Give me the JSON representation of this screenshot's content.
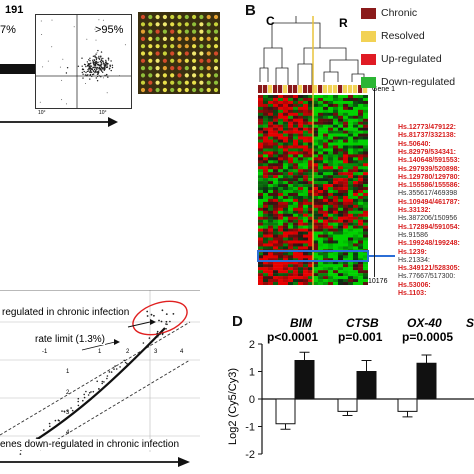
{
  "panel_a": {
    "count_text": "191",
    "percent_left": "7%",
    "percent_right": ">95%",
    "axis_tick": "10°"
  },
  "panel_b": {
    "letter": "B",
    "cluster_labels": [
      "C",
      "R"
    ],
    "legend": [
      {
        "label": "Chronic",
        "color": "#8b1a1a"
      },
      {
        "label": "Resolved",
        "color": "#f2d255"
      },
      {
        "label": "Up-regulated",
        "color": "#e01b24"
      },
      {
        "label": "Down-regulated",
        "color": "#2bb534"
      }
    ],
    "gene_top": "Gene 1",
    "gene_bottom": "10176",
    "gene_labels": [
      {
        "text": "Hs.12773/479122:",
        "red": true
      },
      {
        "text": "Hs.81737/332138:",
        "red": true
      },
      {
        "text": "Hs.50640:",
        "red": true
      },
      {
        "text": "Hs.82979/534341:",
        "red": true
      },
      {
        "text": "Hs.140648/591553:",
        "red": true
      },
      {
        "text": "Hs.297939/520898:",
        "red": true
      },
      {
        "text": "Hs.129780/129780:",
        "red": true
      },
      {
        "text": "Hs.155586/155586:",
        "red": true
      },
      {
        "text": "Hs.355617/469398",
        "red": false
      },
      {
        "text": "Hs.109494/461787:",
        "red": true
      },
      {
        "text": "Hs.33132:",
        "red": true
      },
      {
        "text": "Hs.387206/150956",
        "red": false
      },
      {
        "text": "Hs.172894/591054:",
        "red": true
      },
      {
        "text": "Hs.91586",
        "red": false
      },
      {
        "text": "Hs.199248/199248:",
        "red": true
      },
      {
        "text": "Hs.1239:",
        "red": true
      },
      {
        "text": "Hs.21334:",
        "red": false
      },
      {
        "text": "Hs.349121/528305:",
        "red": true
      },
      {
        "text": "Hs.77667/517300:",
        "red": false
      },
      {
        "text": "Hs.53006:",
        "red": true
      },
      {
        "text": "Hs.1103:",
        "red": true
      }
    ]
  },
  "panel_c": {
    "up_label": "regulated in chronic infection",
    "rate_label": "rate limit (1.3%)",
    "down_label": "enes down-regulated in chronic infection",
    "x_ticks": [
      "-1",
      "1",
      "2",
      "3",
      "4"
    ],
    "y_ticks": [
      "1",
      "2",
      "3",
      "4"
    ]
  },
  "panel_d": {
    "letter": "D",
    "ylabel": "Log2 (Cy5/Cy3)",
    "genes": [
      {
        "name": "BIM",
        "p": "p<0.0001"
      },
      {
        "name": "CTSB",
        "p": "p=0.001"
      },
      {
        "name": "OX-40",
        "p": "p=0.0005"
      }
    ],
    "partial_title": "S",
    "chart_data": {
      "type": "bar",
      "categories": [
        "BIM",
        "CTSB",
        "OX-40"
      ],
      "series": [
        {
          "values": [
            -0.9,
            -0.45,
            -0.45
          ],
          "errors": [
            0.2,
            0.15,
            0.2
          ],
          "color": "#ffffff"
        },
        {
          "values": [
            1.4,
            1.0,
            1.3
          ],
          "errors": [
            0.3,
            0.4,
            0.3
          ],
          "color": "#111111"
        }
      ],
      "ylabel": "Log2 (Cy5/Cy3)",
      "ylim": [
        -2,
        2
      ],
      "y_ticks": [
        -2,
        -1,
        0,
        1,
        2
      ]
    }
  }
}
